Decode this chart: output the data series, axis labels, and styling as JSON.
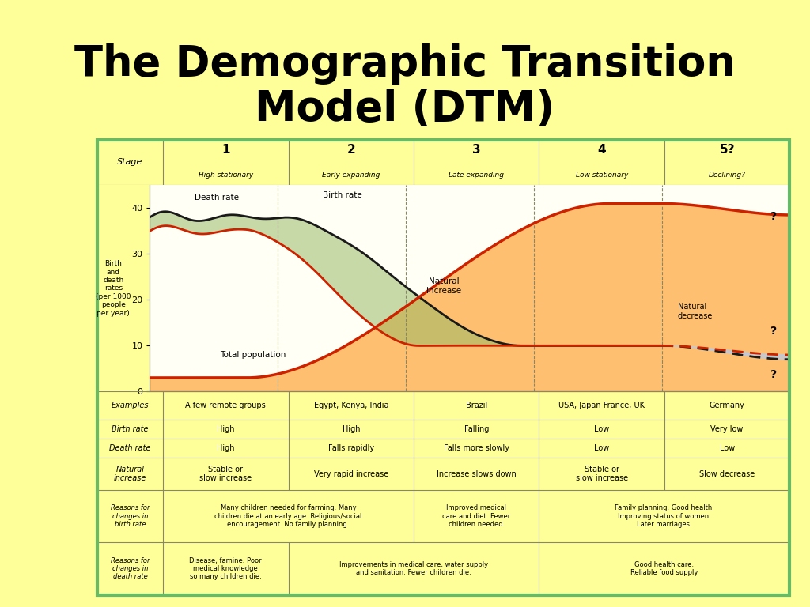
{
  "title_line1": "The Demographic Transition",
  "title_line2": "Model (DTM)",
  "bg_color": "#FFFF99",
  "title_color": "#000000",
  "border_color": "#66BB66",
  "stage_nums": [
    "1",
    "2",
    "3",
    "4",
    "5?"
  ],
  "stage_labels": [
    "High stationary",
    "Early expanding",
    "Late expanding",
    "Low stationary",
    "Declining?"
  ],
  "birth_rate_color": "#222222",
  "death_rate_color": "#222222",
  "pop_curve_color": "#CC2200",
  "natural_increase_color": "#99BB66",
  "orange_fill_color": "#FFAA44",
  "blue_fill_color": "#AACCFF",
  "table_header_bg": "#CCCC99",
  "table_row_bg1": "#FFFFDD",
  "table_row_bg2": "#CCCCAA",
  "table_border": "#888866",
  "examples": [
    "A few remote groups",
    "Egypt, Kenya, India",
    "Brazil",
    "USA, Japan France, UK",
    "Germany"
  ],
  "birth_rates": [
    "High",
    "High",
    "Falling",
    "Low",
    "Very low"
  ],
  "death_rates": [
    "High",
    "Falls rapidly",
    "Falls more slowly",
    "Low",
    "Low"
  ],
  "nat_increase": [
    "Stable or\nslow increase",
    "Very rapid increase",
    "Increase slows down",
    "Stable or\nslow increase",
    "Slow decrease"
  ],
  "reasons_birth_12": "Many children needed for farming. Many\nchildren die at an early age. Religious/social\nencouragement. No family planning.",
  "reasons_birth_3": "Improved medical\ncare and diet. Fewer\nchildren needed.",
  "reasons_birth_45": "Family planning. Good health.\nImproving status of women.\nLater marriages.",
  "reasons_death_1": "Disease, famine. Poor\nmedical knowledge\nso many children die.",
  "reasons_death_23": "Improvements in medical care, water supply\nand sanitation. Fewer children die.",
  "reasons_death_45": "Good health care.\nReliable food supply."
}
